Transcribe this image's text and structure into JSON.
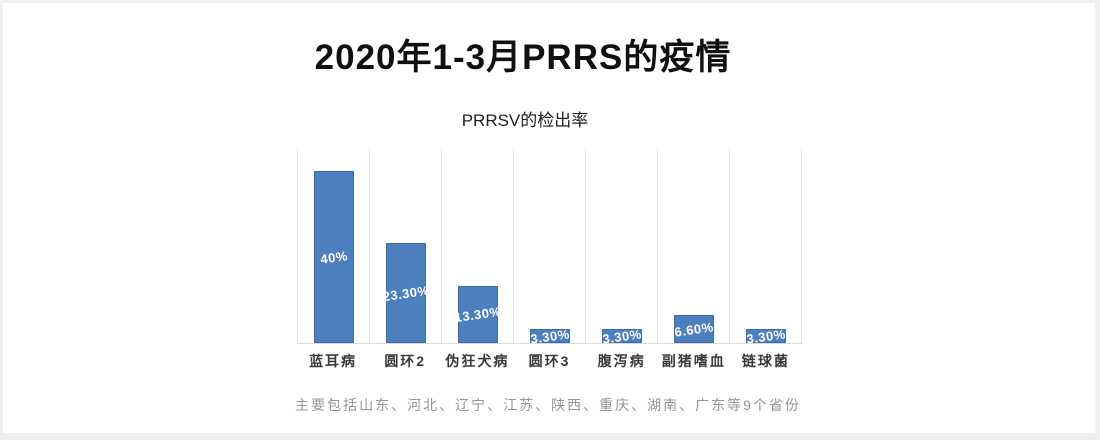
{
  "page": {
    "title": "2020年1-3月PRRS的疫情",
    "footnote": "主要包括山东、河北、辽宁、江苏、陕西、重庆、湖南、广东等9个省份"
  },
  "chart_data": {
    "type": "bar",
    "title": "PRRSV的检出率",
    "categories": [
      "蓝耳病",
      "圆环2",
      "伪狂犬病",
      "圆环3",
      "腹泻病",
      "副猪嗜血",
      "链球菌"
    ],
    "values": [
      40,
      23.3,
      13.3,
      3.3,
      3.3,
      6.6,
      3.3
    ],
    "value_labels": [
      "40%",
      "23.30%",
      "13.30%",
      "3.30%",
      "3.30%",
      "6.60%",
      "3.30%"
    ],
    "xlabel": "",
    "ylabel": "",
    "ylim": [
      0,
      45
    ],
    "grid": "vertical-only",
    "legend": "none",
    "data_label_position": "inside-center",
    "colors": {
      "bar_fill": "#4d7fbe",
      "bar_border": "#3d6ba8",
      "gridline": "#e4e4e8",
      "baseline": "#d9d9d9",
      "data_label": "#ffffff"
    }
  }
}
